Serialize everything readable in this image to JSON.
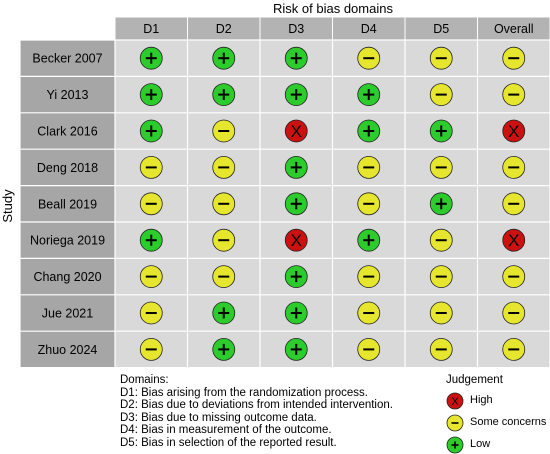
{
  "chart_data": {
    "type": "table",
    "title": "Risk of bias domains",
    "ylabel": "Study",
    "columns": [
      "D1",
      "D2",
      "D3",
      "D4",
      "D5",
      "Overall"
    ],
    "studies": [
      "Becker 2007",
      "Yi 2013",
      "Clark 2016",
      "Deng 2018",
      "Beall 2019",
      "Noriega 2019",
      "Chang 2020",
      "Jue 2021",
      "Zhuo 2024"
    ],
    "judgements": [
      [
        "low",
        "low",
        "low",
        "some",
        "some",
        "some"
      ],
      [
        "low",
        "low",
        "low",
        "low",
        "some",
        "some"
      ],
      [
        "low",
        "some",
        "high",
        "low",
        "low",
        "high"
      ],
      [
        "some",
        "some",
        "low",
        "some",
        "some",
        "some"
      ],
      [
        "some",
        "some",
        "low",
        "some",
        "low",
        "some"
      ],
      [
        "low",
        "some",
        "high",
        "low",
        "some",
        "high"
      ],
      [
        "some",
        "some",
        "low",
        "some",
        "some",
        "some"
      ],
      [
        "some",
        "low",
        "low",
        "some",
        "some",
        "some"
      ],
      [
        "some",
        "low",
        "low",
        "some",
        "some",
        "some"
      ]
    ],
    "symbols": {
      "low": "+",
      "some": "−",
      "high": "X"
    },
    "colors": {
      "low": "#2bcc2b",
      "some": "#e6e62e",
      "high": "#cc1111",
      "header": "#b3b3b3",
      "cell": "#d9d9d9",
      "study": "#a6a6a6"
    }
  },
  "legend": {
    "domains_title": "Domains:",
    "domains": [
      "D1: Bias arising from the randomization process.",
      "D2: Bias due to deviations from intended intervention.",
      "D3: Bias due to missing outcome data.",
      "D4: Bias in measurement of the outcome.",
      "D5: Bias in selection of the reported result."
    ],
    "judgement_title": "Judgement",
    "judgements": [
      {
        "key": "high",
        "label": "High"
      },
      {
        "key": "some",
        "label": "Some concerns"
      },
      {
        "key": "low",
        "label": "Low"
      }
    ]
  }
}
